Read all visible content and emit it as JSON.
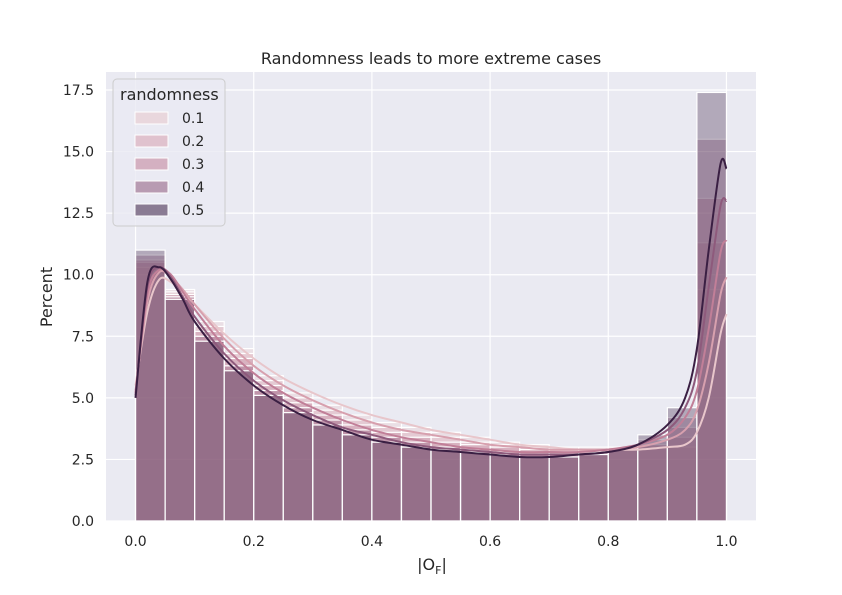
{
  "chart_data": {
    "type": "bar",
    "title": "Randomness leads to more extreme cases",
    "xlabel": "|O_F|",
    "xlabel_main": "|O",
    "xlabel_sub": "F",
    "xlabel_end": "|",
    "ylabel": "Percent",
    "xlim": [
      -0.05,
      1.05
    ],
    "ylim": [
      0,
      17.5
    ],
    "xticks": [
      0.0,
      0.2,
      0.4,
      0.6,
      0.8,
      1.0
    ],
    "xtick_labels": [
      "0.0",
      "0.2",
      "0.4",
      "0.6",
      "0.8",
      "1.0"
    ],
    "yticks": [
      0.0,
      2.5,
      5.0,
      7.5,
      10.0,
      12.5,
      15.0,
      17.5
    ],
    "ytick_labels": [
      "0.0",
      "2.5",
      "5.0",
      "7.5",
      "10.0",
      "12.5",
      "15.0",
      "17.5"
    ],
    "grid": true,
    "legend": {
      "title": "randomness",
      "placement": "upper-left",
      "entries": [
        "0.1",
        "0.2",
        "0.3",
        "0.4",
        "0.5"
      ]
    },
    "bin_edges": [
      0.0,
      0.05,
      0.1,
      0.15,
      0.2,
      0.25,
      0.3,
      0.35,
      0.4,
      0.45,
      0.5,
      0.55,
      0.6,
      0.65,
      0.7,
      0.75,
      0.8,
      0.85,
      0.9,
      0.95,
      1.0
    ],
    "series": [
      {
        "name": "0.1",
        "color": "#e8c6cb",
        "hist": [
          10.3,
          9.4,
          8.1,
          7.0,
          5.9,
          5.2,
          4.7,
          4.3,
          4.0,
          3.8,
          3.6,
          3.4,
          3.2,
          3.1,
          3.0,
          3.0,
          3.0,
          3.0,
          3.0,
          9.4
        ],
        "kde_x": [
          0.0,
          0.02,
          0.04,
          0.06,
          0.08,
          0.1,
          0.15,
          0.2,
          0.25,
          0.3,
          0.35,
          0.4,
          0.45,
          0.5,
          0.55,
          0.6,
          0.65,
          0.7,
          0.75,
          0.8,
          0.85,
          0.9,
          0.93,
          0.95,
          0.97,
          0.99,
          1.0
        ],
        "kde_y": [
          5.5,
          8.5,
          9.8,
          9.7,
          9.3,
          8.8,
          7.6,
          6.6,
          5.8,
          5.2,
          4.7,
          4.3,
          4.0,
          3.7,
          3.5,
          3.3,
          3.1,
          3.0,
          2.9,
          2.9,
          2.9,
          3.0,
          3.1,
          3.6,
          5.0,
          7.6,
          8.4
        ]
      },
      {
        "name": "0.2",
        "color": "#d7a0ae",
        "hist": [
          10.5,
          9.3,
          7.9,
          6.8,
          5.7,
          5.0,
          4.5,
          4.1,
          3.8,
          3.6,
          3.4,
          3.2,
          3.1,
          3.0,
          2.9,
          2.9,
          3.0,
          3.1,
          3.4,
          11.3
        ],
        "kde_x": [
          0.0,
          0.02,
          0.04,
          0.06,
          0.08,
          0.1,
          0.15,
          0.2,
          0.25,
          0.3,
          0.35,
          0.4,
          0.45,
          0.5,
          0.55,
          0.6,
          0.65,
          0.7,
          0.75,
          0.8,
          0.85,
          0.9,
          0.93,
          0.95,
          0.97,
          0.99,
          1.0
        ],
        "kde_y": [
          5.3,
          8.9,
          10.1,
          9.9,
          9.4,
          8.8,
          7.4,
          6.3,
          5.5,
          4.9,
          4.4,
          4.0,
          3.7,
          3.5,
          3.3,
          3.1,
          3.0,
          2.9,
          2.9,
          2.9,
          3.0,
          3.3,
          3.7,
          4.5,
          6.4,
          9.2,
          9.9
        ]
      },
      {
        "name": "0.3",
        "color": "#c17f98",
        "hist": [
          10.6,
          9.2,
          7.7,
          6.6,
          5.5,
          4.8,
          4.3,
          3.9,
          3.6,
          3.4,
          3.2,
          3.1,
          3.0,
          2.9,
          2.8,
          2.8,
          2.9,
          3.1,
          3.8,
          13.1
        ],
        "kde_x": [
          0.0,
          0.02,
          0.04,
          0.06,
          0.08,
          0.1,
          0.15,
          0.2,
          0.25,
          0.3,
          0.35,
          0.4,
          0.45,
          0.5,
          0.55,
          0.6,
          0.65,
          0.7,
          0.75,
          0.8,
          0.85,
          0.9,
          0.93,
          0.95,
          0.97,
          0.99,
          1.0
        ],
        "kde_y": [
          5.2,
          9.2,
          10.2,
          10.0,
          9.3,
          8.6,
          7.1,
          6.0,
          5.2,
          4.6,
          4.1,
          3.7,
          3.4,
          3.2,
          3.0,
          2.9,
          2.8,
          2.8,
          2.8,
          2.9,
          3.1,
          3.5,
          4.2,
          5.3,
          7.8,
          10.9,
          11.4
        ]
      },
      {
        "name": "0.4",
        "color": "#8e5a7c",
        "hist": [
          10.8,
          9.1,
          7.5,
          6.3,
          5.3,
          4.6,
          4.1,
          3.7,
          3.4,
          3.2,
          3.0,
          2.9,
          2.8,
          2.7,
          2.7,
          2.7,
          2.9,
          3.3,
          4.2,
          15.5
        ],
        "kde_x": [
          0.0,
          0.02,
          0.04,
          0.06,
          0.08,
          0.1,
          0.15,
          0.2,
          0.25,
          0.3,
          0.35,
          0.4,
          0.45,
          0.5,
          0.55,
          0.6,
          0.65,
          0.7,
          0.75,
          0.8,
          0.85,
          0.9,
          0.93,
          0.95,
          0.97,
          0.99,
          1.0
        ],
        "kde_y": [
          5.1,
          9.5,
          10.3,
          9.9,
          9.1,
          8.3,
          6.8,
          5.7,
          4.9,
          4.3,
          3.8,
          3.5,
          3.2,
          3.0,
          2.9,
          2.8,
          2.7,
          2.7,
          2.7,
          2.8,
          3.1,
          3.7,
          4.6,
          6.1,
          9.5,
          12.8,
          13.0
        ]
      },
      {
        "name": "0.5",
        "color": "#3a1f43",
        "hist": [
          11.0,
          9.0,
          7.3,
          6.1,
          5.1,
          4.4,
          3.9,
          3.5,
          3.2,
          3.0,
          2.9,
          2.8,
          2.7,
          2.6,
          2.6,
          2.7,
          2.9,
          3.5,
          4.6,
          17.4
        ],
        "kde_x": [
          0.0,
          0.02,
          0.04,
          0.06,
          0.08,
          0.1,
          0.15,
          0.2,
          0.25,
          0.3,
          0.35,
          0.4,
          0.45,
          0.5,
          0.55,
          0.6,
          0.65,
          0.7,
          0.75,
          0.8,
          0.85,
          0.9,
          0.93,
          0.95,
          0.97,
          0.99,
          1.0
        ],
        "kde_y": [
          5.0,
          9.7,
          10.3,
          9.8,
          9.0,
          8.1,
          6.6,
          5.5,
          4.7,
          4.1,
          3.7,
          3.3,
          3.1,
          2.9,
          2.8,
          2.7,
          2.6,
          2.6,
          2.7,
          2.8,
          3.1,
          3.9,
          5.0,
          7.0,
          11.0,
          14.5,
          14.3
        ]
      }
    ]
  },
  "colors": {
    "axes_background": "#eaeaf2",
    "grid": "#ffffff",
    "bar_edge": "#ffffff",
    "text": "#262626",
    "legend_background": "#eaeaf2",
    "legend_border": "#cccccc"
  }
}
